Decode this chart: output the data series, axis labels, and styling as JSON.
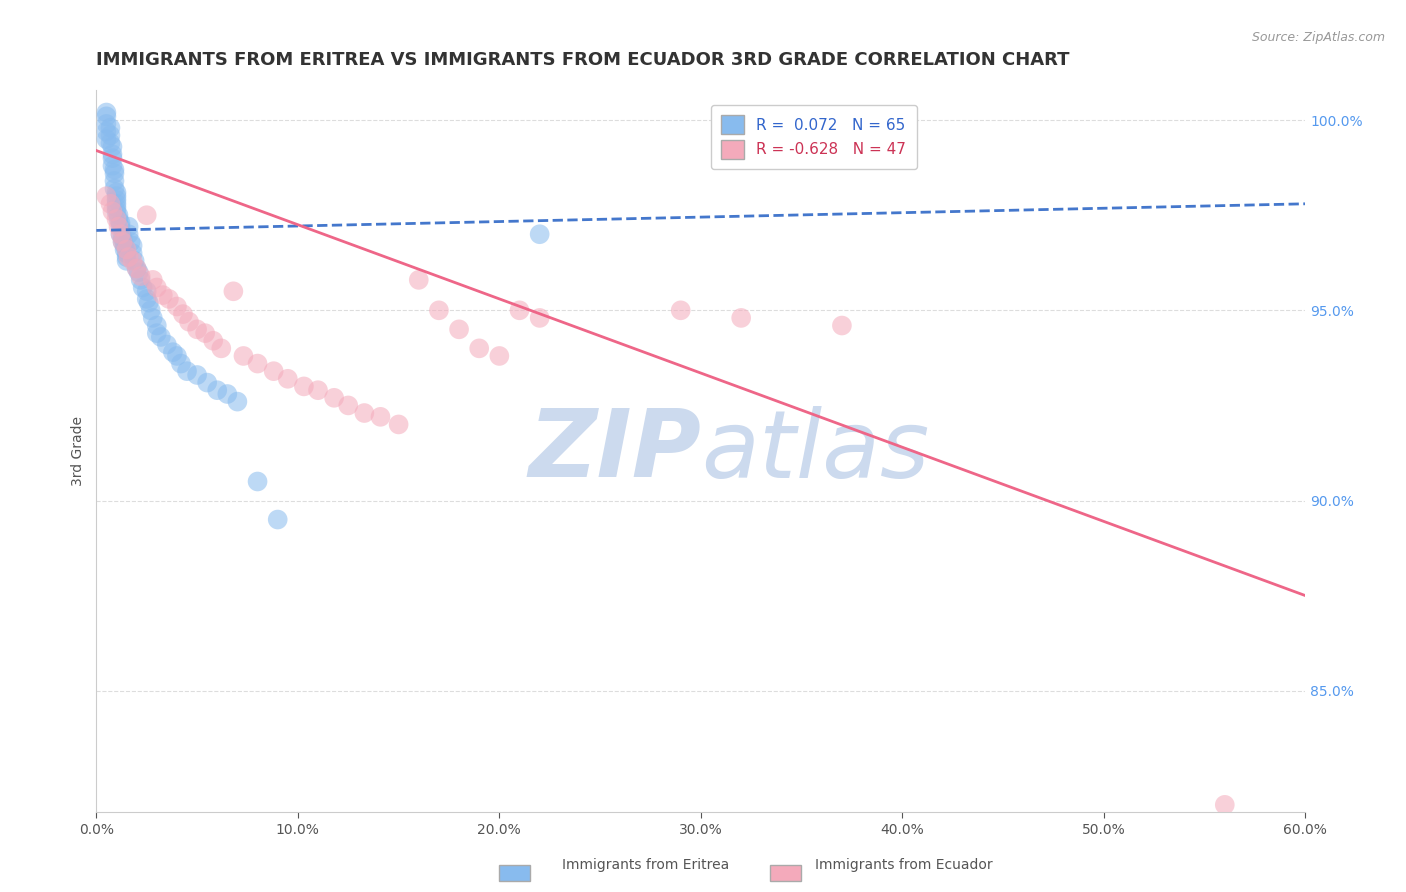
{
  "title": "IMMIGRANTS FROM ERITREA VS IMMIGRANTS FROM ECUADOR 3RD GRADE CORRELATION CHART",
  "source": "Source: ZipAtlas.com",
  "ylabel": "3rd Grade",
  "xlim": [
    0.0,
    0.6
  ],
  "ylim": [
    0.818,
    1.008
  ],
  "xticks": [
    0.0,
    0.1,
    0.2,
    0.3,
    0.4,
    0.5,
    0.6
  ],
  "xticklabels": [
    "0.0%",
    "10.0%",
    "20.0%",
    "30.0%",
    "40.0%",
    "50.0%",
    "60.0%"
  ],
  "yticks": [
    0.85,
    0.9,
    0.95,
    1.0
  ],
  "yticklabels": [
    "85.0%",
    "90.0%",
    "95.0%",
    "100.0%"
  ],
  "eritrea_color": "#88BBEE",
  "ecuador_color": "#F4AABB",
  "eritrea_line_color": "#4477CC",
  "ecuador_line_color": "#EE6688",
  "watermark_zip": "ZIP",
  "watermark_atlas": "atlas",
  "watermark_color": "#CCDAEE",
  "background_color": "#FFFFFF",
  "grid_color": "#DDDDDD",
  "title_fontsize": 13,
  "axis_label_fontsize": 10,
  "tick_fontsize": 10,
  "legend_label_eritrea": "R =  0.072   N = 65",
  "legend_label_ecuador": "R = -0.628   N = 47",
  "legend_color_eritrea": "#3366CC",
  "legend_color_ecuador": "#CC3355",
  "eritrea_line": {
    "x0": 0.0,
    "y0": 0.971,
    "x1": 0.6,
    "y1": 0.978
  },
  "ecuador_line": {
    "x0": 0.0,
    "y0": 0.992,
    "x1": 0.6,
    "y1": 0.875
  },
  "eritrea_scatter_x": [
    0.005,
    0.005,
    0.005,
    0.005,
    0.005,
    0.007,
    0.007,
    0.007,
    0.008,
    0.008,
    0.008,
    0.008,
    0.009,
    0.009,
    0.009,
    0.009,
    0.01,
    0.01,
    0.01,
    0.01,
    0.01,
    0.01,
    0.011,
    0.011,
    0.012,
    0.012,
    0.012,
    0.013,
    0.013,
    0.014,
    0.014,
    0.015,
    0.015,
    0.015,
    0.016,
    0.016,
    0.017,
    0.018,
    0.018,
    0.019,
    0.02,
    0.021,
    0.022,
    0.023,
    0.025,
    0.025,
    0.026,
    0.027,
    0.028,
    0.03,
    0.03,
    0.032,
    0.035,
    0.038,
    0.04,
    0.042,
    0.045,
    0.05,
    0.055,
    0.06,
    0.065,
    0.07,
    0.08,
    0.09,
    0.22
  ],
  "eritrea_scatter_y": [
    1.002,
    0.999,
    0.997,
    0.995,
    1.001,
    0.998,
    0.996,
    0.994,
    0.993,
    0.991,
    0.99,
    0.988,
    0.987,
    0.986,
    0.984,
    0.982,
    0.981,
    0.98,
    0.979,
    0.978,
    0.977,
    0.976,
    0.975,
    0.974,
    0.973,
    0.972,
    0.97,
    0.969,
    0.968,
    0.967,
    0.966,
    0.965,
    0.964,
    0.963,
    0.972,
    0.97,
    0.968,
    0.967,
    0.965,
    0.963,
    0.961,
    0.96,
    0.958,
    0.956,
    0.955,
    0.953,
    0.952,
    0.95,
    0.948,
    0.946,
    0.944,
    0.943,
    0.941,
    0.939,
    0.938,
    0.936,
    0.934,
    0.933,
    0.931,
    0.929,
    0.928,
    0.926,
    0.905,
    0.895,
    0.97
  ],
  "ecuador_scatter_x": [
    0.005,
    0.007,
    0.008,
    0.01,
    0.011,
    0.012,
    0.013,
    0.015,
    0.016,
    0.018,
    0.02,
    0.022,
    0.025,
    0.028,
    0.03,
    0.033,
    0.036,
    0.04,
    0.043,
    0.046,
    0.05,
    0.054,
    0.058,
    0.062,
    0.068,
    0.073,
    0.08,
    0.088,
    0.095,
    0.103,
    0.11,
    0.118,
    0.125,
    0.133,
    0.141,
    0.15,
    0.16,
    0.17,
    0.18,
    0.19,
    0.2,
    0.21,
    0.22,
    0.29,
    0.32,
    0.37,
    0.56
  ],
  "ecuador_scatter_y": [
    0.98,
    0.978,
    0.976,
    0.974,
    0.972,
    0.97,
    0.968,
    0.966,
    0.964,
    0.963,
    0.961,
    0.959,
    0.975,
    0.958,
    0.956,
    0.954,
    0.953,
    0.951,
    0.949,
    0.947,
    0.945,
    0.944,
    0.942,
    0.94,
    0.955,
    0.938,
    0.936,
    0.934,
    0.932,
    0.93,
    0.929,
    0.927,
    0.925,
    0.923,
    0.922,
    0.92,
    0.958,
    0.95,
    0.945,
    0.94,
    0.938,
    0.95,
    0.948,
    0.95,
    0.948,
    0.946,
    0.82
  ]
}
